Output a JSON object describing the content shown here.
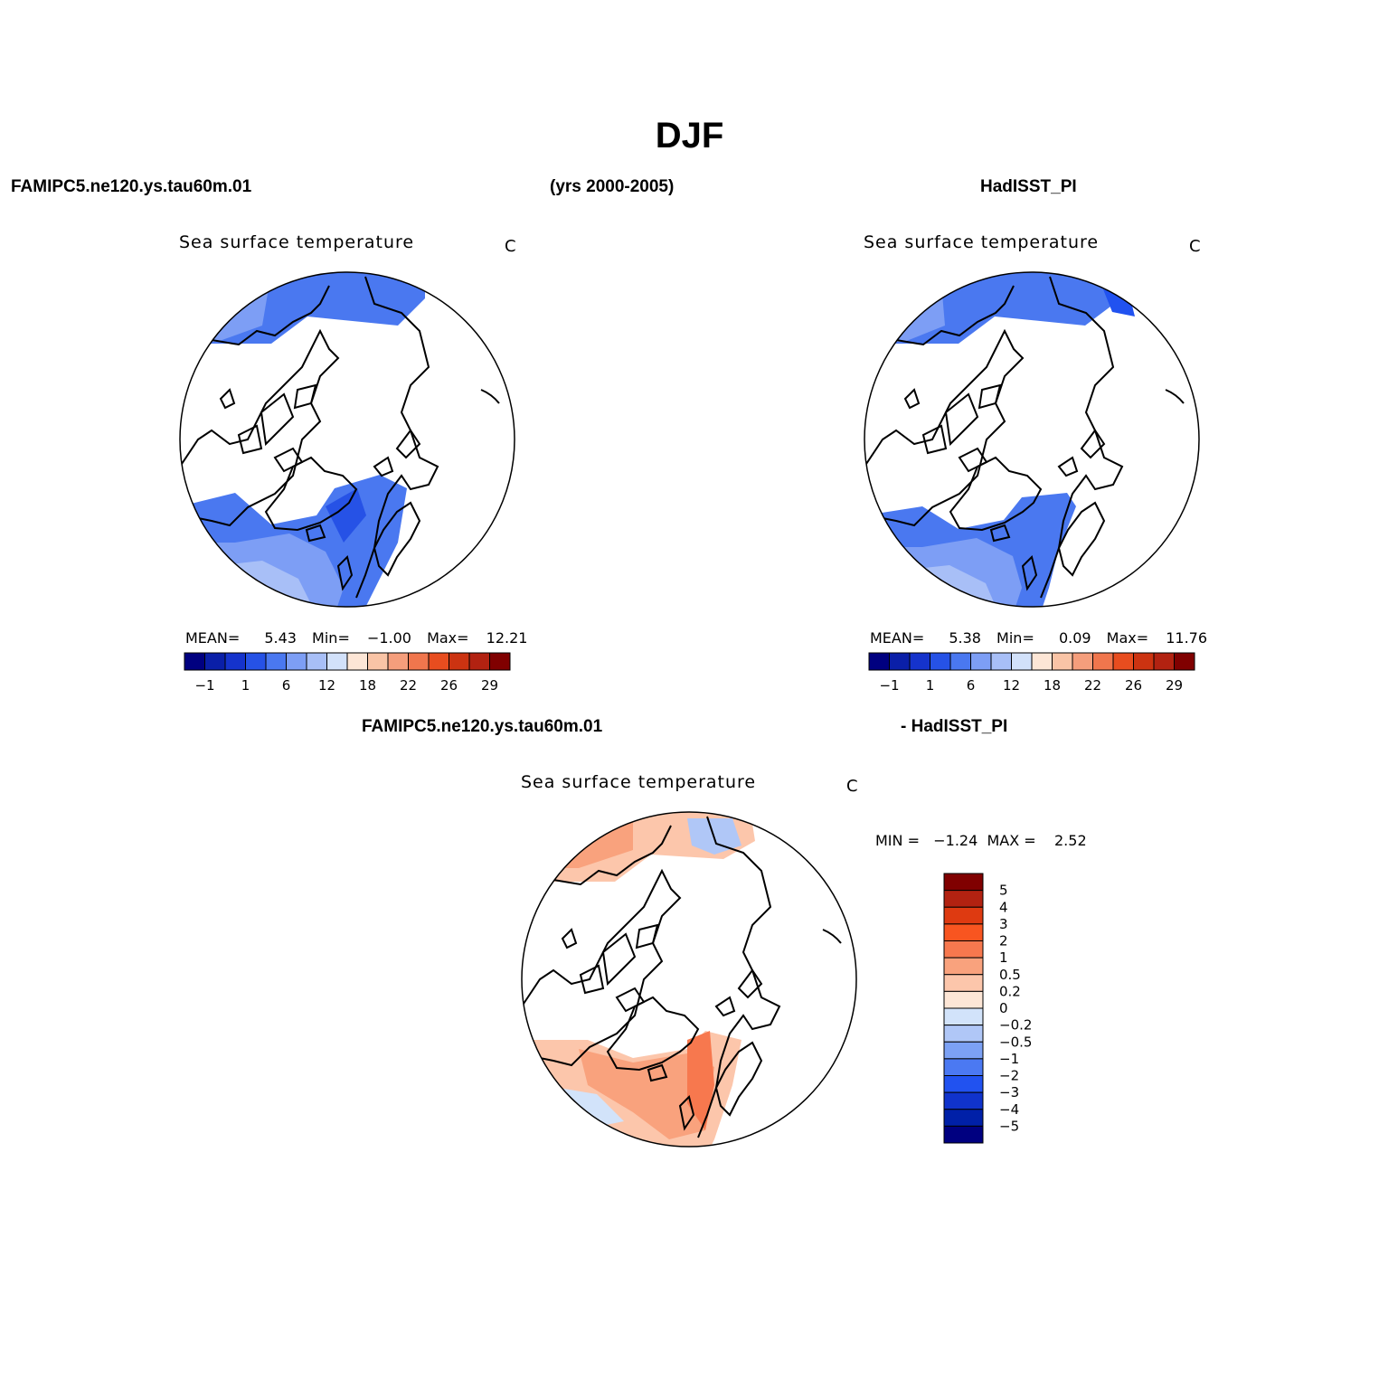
{
  "header": {
    "title": "DJF",
    "left": "FAMIPC5.ne120.ys.tau60m.01",
    "center": "(yrs 2000-2005)",
    "right": "HadISST_PI",
    "diff_left": "FAMIPC5.ne120.ys.tau60m.01",
    "diff_right": "- HadISST_PI"
  },
  "panels": [
    {
      "id": "model",
      "title": "Sea surface temperature",
      "units": "C",
      "stats": {
        "mean_label": "MEAN=",
        "mean": "5.43",
        "min_label": "Min=",
        "min": "−1.00",
        "max_label": "Max=",
        "max": "12.21"
      }
    },
    {
      "id": "obs",
      "title": "Sea surface temperature",
      "units": "C",
      "stats": {
        "mean_label": "MEAN=",
        "mean": "5.38",
        "min_label": "Min=",
        "min": "0.09",
        "max_label": "Max=",
        "max": "11.76"
      }
    },
    {
      "id": "diff",
      "title": "Sea surface temperature",
      "units": "C",
      "stats_text": "MIN =   −1.24  MAX =    2.52"
    }
  ],
  "colorbar_abs": {
    "colors": [
      "#000080",
      "#0a1fa8",
      "#1533cc",
      "#2652e6",
      "#4a78f0",
      "#7d9ef5",
      "#a8bff7",
      "#d2e1fa",
      "#fde6d6",
      "#f9c4a6",
      "#f59e7c",
      "#f0764d",
      "#e84d1f",
      "#cc3311",
      "#b22211",
      "#800000"
    ],
    "labels": [
      "−1",
      "1",
      "6",
      "12",
      "18",
      "22",
      "26",
      "29"
    ]
  },
  "colorbar_diff": {
    "colors": [
      "#800000",
      "#b22211",
      "#de3a11",
      "#f85520",
      "#f7784e",
      "#f9a27d",
      "#fcc6ab",
      "#fde6d6",
      "#d2e3fa",
      "#b0c7f7",
      "#7ca1f4",
      "#4b79f2",
      "#2152f0",
      "#1033cc",
      "#0020a8",
      "#000080"
    ],
    "labels": [
      "5",
      "4",
      "3",
      "2",
      "1",
      "0.5",
      "0.2",
      "0",
      "−0.2",
      "−0.5",
      "−1",
      "−2",
      "−3",
      "−4",
      "−5"
    ]
  }
}
